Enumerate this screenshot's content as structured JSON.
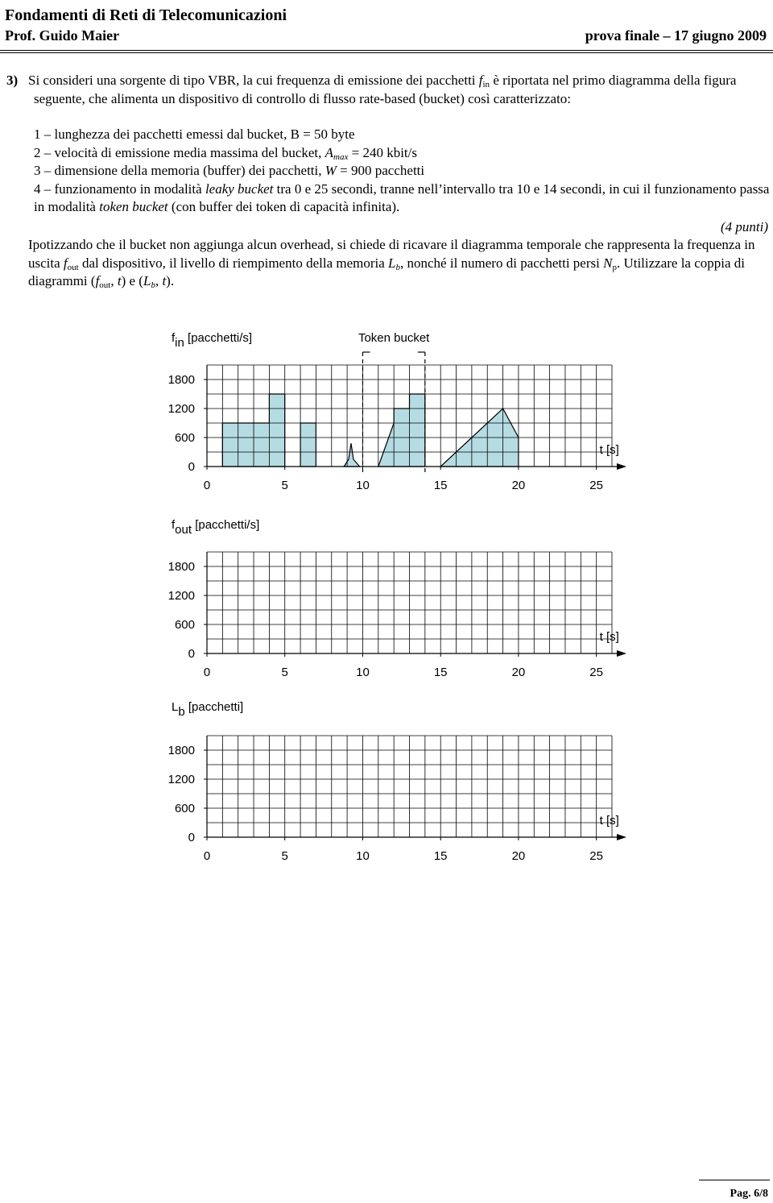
{
  "header": {
    "course": "Fondamenti di Reti di Telecomunicazioni",
    "professor": "Prof. Guido Maier",
    "exam": "prova finale – 17 giugno 2009"
  },
  "problem": {
    "number": "3)",
    "intro": [
      "Si consideri una sorgente di tipo VBR, la cui frequenza di emissione dei pacchetti ",
      "f",
      "in",
      " è riportata nel primo diagramma della figura seguente, che alimenta un dispositivo di controllo di flusso rate-based (bucket) così caratterizzato:"
    ],
    "items": [
      [
        "1 – lunghezza dei pacchetti emessi dal bucket, B = 50 byte"
      ],
      [
        "2 – velocità di emissione media massima del bucket, ",
        "A",
        "max",
        " = 240 kbit/s"
      ],
      [
        "3 – dimensione della memoria (buffer) dei pacchetti, ",
        "W",
        " = 900 pacchetti"
      ],
      [
        "4 – funzionamento in modalità ",
        "leaky bucket",
        " tra 0 e 25 secondi, tranne nell’intervallo tra 10 e 14 secondi, in cui il funzionamento passa in modalità ",
        "token bucket",
        " (con buffer dei token di capacità infinita)."
      ]
    ],
    "points": "(4 punti)",
    "question": [
      "Ipotizzando che il bucket non aggiunga alcun overhead, si chiede di ricavare il diagramma temporale che rappresenta la frequenza in uscita ",
      "f",
      "out",
      " dal dispositivo, il livello di riempimento della memoria ",
      "L",
      "b",
      ", nonché il numero di pacchetti persi ",
      "N",
      "p",
      ". Utilizzare la coppia di diagrammi (",
      "f",
      "out",
      ", ",
      "t",
      ") e (",
      "L",
      "b",
      ", ",
      "t",
      ")."
    ]
  },
  "chart_data": [
    {
      "type": "area",
      "y_label": [
        "f",
        "in",
        " [pacchetti/s]"
      ],
      "x_label": "t [s]",
      "xlim": [
        0,
        26
      ],
      "ylim": [
        0,
        2100
      ],
      "xticks": [
        0,
        5,
        10,
        15,
        20,
        25
      ],
      "yticks": [
        0,
        600,
        1200,
        1800
      ],
      "grid": true,
      "grid_step": {
        "x": 1,
        "y": 300
      },
      "token_bucket": {
        "label": "Token bucket",
        "x": [
          10,
          14
        ]
      },
      "series": [
        {
          "color": "#b5dce2",
          "x": [
            1,
            1,
            4,
            4,
            5,
            5,
            null,
            6,
            6,
            7,
            7,
            null,
            8.8,
            9.1,
            9.25,
            9.4,
            9.8,
            null,
            11,
            12,
            12,
            13,
            13,
            14,
            14,
            null,
            15,
            19,
            20,
            20
          ],
          "values": [
            0,
            900,
            900,
            1500,
            1500,
            0,
            null,
            0,
            900,
            900,
            0,
            null,
            0,
            150,
            480,
            150,
            0,
            null,
            0,
            900,
            1200,
            1200,
            1500,
            1500,
            0,
            null,
            0,
            1200,
            600,
            0
          ]
        }
      ]
    },
    {
      "type": "line",
      "y_label": [
        "f",
        "out",
        " [pacchetti/s]"
      ],
      "x_label": "t [s]",
      "xlim": [
        0,
        26
      ],
      "ylim": [
        0,
        2100
      ],
      "xticks": [
        0,
        5,
        10,
        15,
        20,
        25
      ],
      "yticks": [
        0,
        600,
        1200,
        1800
      ],
      "grid": true,
      "grid_step": {
        "x": 1,
        "y": 300
      },
      "series": []
    },
    {
      "type": "line",
      "y_label": [
        "L",
        "b",
        " [pacchetti]"
      ],
      "x_label": "t [s]",
      "xlim": [
        0,
        26
      ],
      "ylim": [
        0,
        2100
      ],
      "xticks": [
        0,
        5,
        10,
        15,
        20,
        25
      ],
      "yticks": [
        0,
        600,
        1200,
        1800
      ],
      "grid": true,
      "grid_step": {
        "x": 1,
        "y": 300
      },
      "series": []
    }
  ],
  "footer": {
    "page": "Pag. 6/8"
  }
}
